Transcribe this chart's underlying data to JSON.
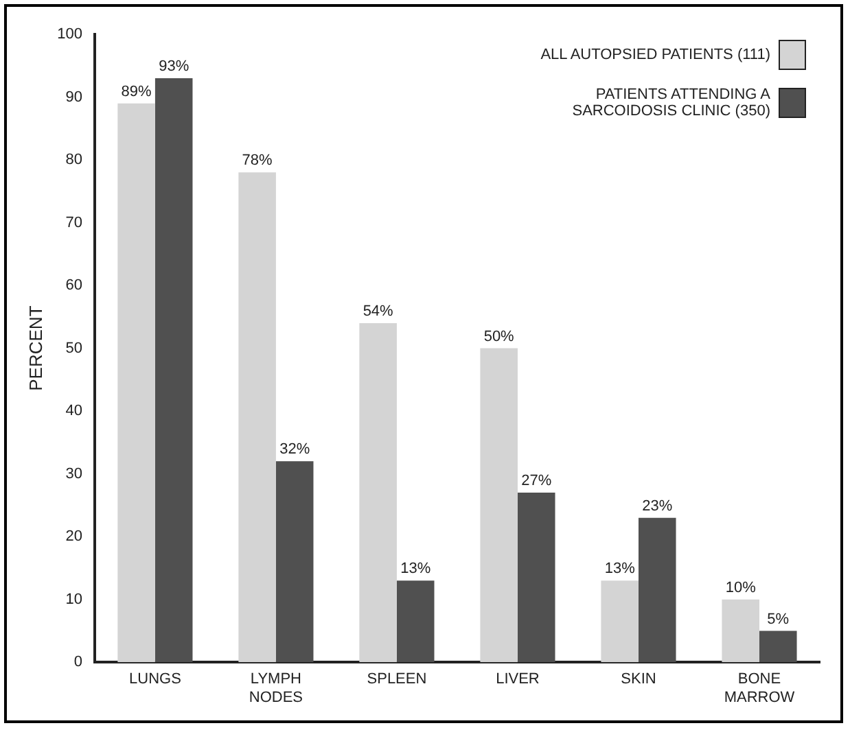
{
  "chart_data": {
    "type": "bar",
    "ylabel": "PERCENT",
    "categories": [
      "LUNGS",
      "LYMPH\nNODES",
      "SPLEEN",
      "LIVER",
      "SKIN",
      "BONE\nMARROW"
    ],
    "series": [
      {
        "name": "ALL AUTOPSIED PATIENTS (111)",
        "color": "#d4d4d4",
        "values": [
          89,
          78,
          54,
          50,
          13,
          10
        ],
        "value_labels": [
          "89%",
          "78%",
          "54%",
          "50%",
          "13%",
          "10%"
        ]
      },
      {
        "name": "PATIENTS ATTENDING A\nSARCOIDOSIS CLINIC (350)",
        "color": "#505050",
        "values": [
          93,
          32,
          13,
          27,
          23,
          5
        ],
        "value_labels": [
          "93%",
          "32%",
          "13%",
          "27%",
          "23%",
          "5%"
        ]
      }
    ],
    "ylim": [
      0,
      100
    ],
    "yticks": [
      0,
      10,
      20,
      30,
      40,
      50,
      60,
      70,
      80,
      90,
      100
    ],
    "grid": false,
    "legend": "top right"
  }
}
